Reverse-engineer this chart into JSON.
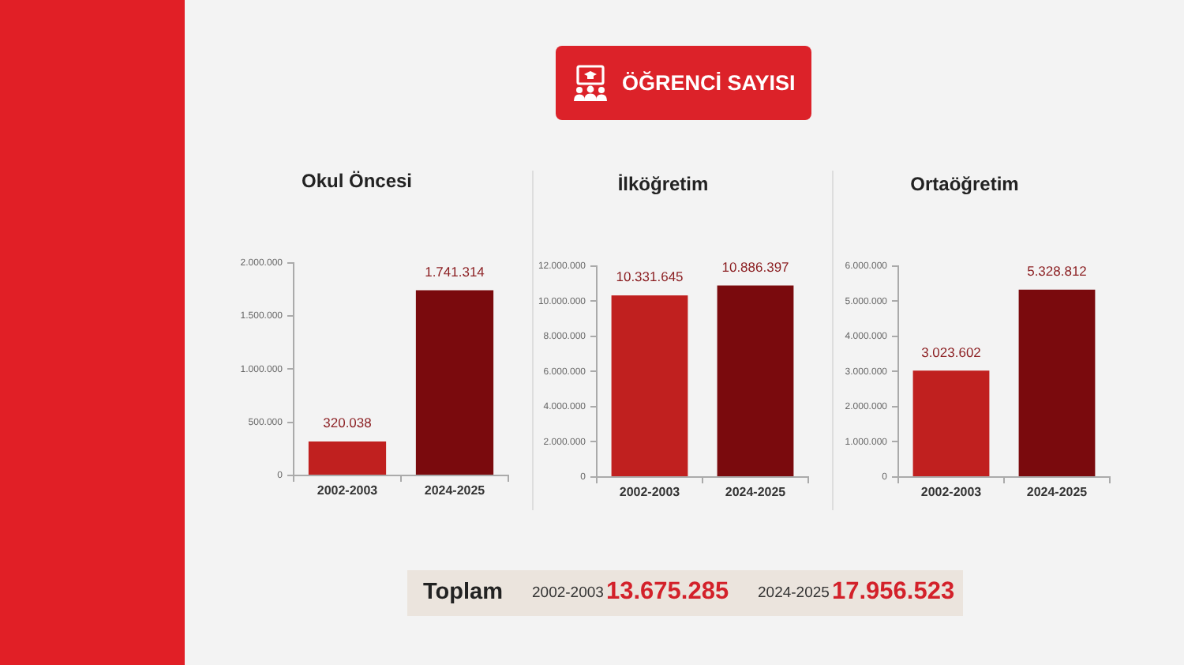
{
  "chart_data": [
    {
      "type": "other",
      "title": "ÖĞRENCİ SAYISI"
    },
    {
      "type": "bar",
      "title": "Okul Öncesi",
      "categories": [
        "2002-2003",
        "2024-2025"
      ],
      "values": [
        320038,
        1741314
      ],
      "colors": [
        "#c0201f",
        "#7a0a0d"
      ],
      "value_labels": [
        "320.038",
        "1.741.314"
      ],
      "ylim": [
        0,
        2000000
      ],
      "yticks": [
        {
          "value": 0,
          "label": "0"
        },
        {
          "value": 500000,
          "label": "500.000"
        },
        {
          "value": 1000000,
          "label": "1.000.000"
        },
        {
          "value": 1500000,
          "label": "1.500.000"
        },
        {
          "value": 2000000,
          "label": "2.000.000"
        }
      ]
    },
    {
      "type": "bar",
      "title": "İlköğretim",
      "categories": [
        "2002-2003",
        "2024-2025"
      ],
      "values": [
        10331645,
        10886397
      ],
      "colors": [
        "#c0201f",
        "#7a0a0d"
      ],
      "value_labels": [
        "10.331.645",
        "10.886.397"
      ],
      "ylim": [
        0,
        12000000
      ],
      "yticks": [
        {
          "value": 0,
          "label": "0"
        },
        {
          "value": 2000000,
          "label": "2.000.000"
        },
        {
          "value": 4000000,
          "label": "4.000.000"
        },
        {
          "value": 6000000,
          "label": "6.000.000"
        },
        {
          "value": 8000000,
          "label": "8.000.000"
        },
        {
          "value": 10000000,
          "label": "10.000.000"
        },
        {
          "value": 12000000,
          "label": "12.000.000"
        }
      ]
    },
    {
      "type": "bar",
      "title": "Ortaöğretim",
      "categories": [
        "2002-2003",
        "2024-2025"
      ],
      "values": [
        3023602,
        5328812
      ],
      "colors": [
        "#c0201f",
        "#7a0a0d"
      ],
      "value_labels": [
        "3.023.602",
        "5.328.812"
      ],
      "ylim": [
        0,
        6000000
      ],
      "yticks": [
        {
          "value": 0,
          "label": "0"
        },
        {
          "value": 1000000,
          "label": "1.000.000"
        },
        {
          "value": 2000000,
          "label": "2.000.000"
        },
        {
          "value": 3000000,
          "label": "3.000.000"
        },
        {
          "value": 4000000,
          "label": "4.000.000"
        },
        {
          "value": 5000000,
          "label": "5.000.000"
        },
        {
          "value": 6000000,
          "label": "6.000.000"
        }
      ]
    },
    {
      "type": "other",
      "title": "Toplam",
      "annotations": [
        "2002-2003",
        "13.675.285",
        "2024-2025",
        "17.956.523"
      ]
    }
  ]
}
